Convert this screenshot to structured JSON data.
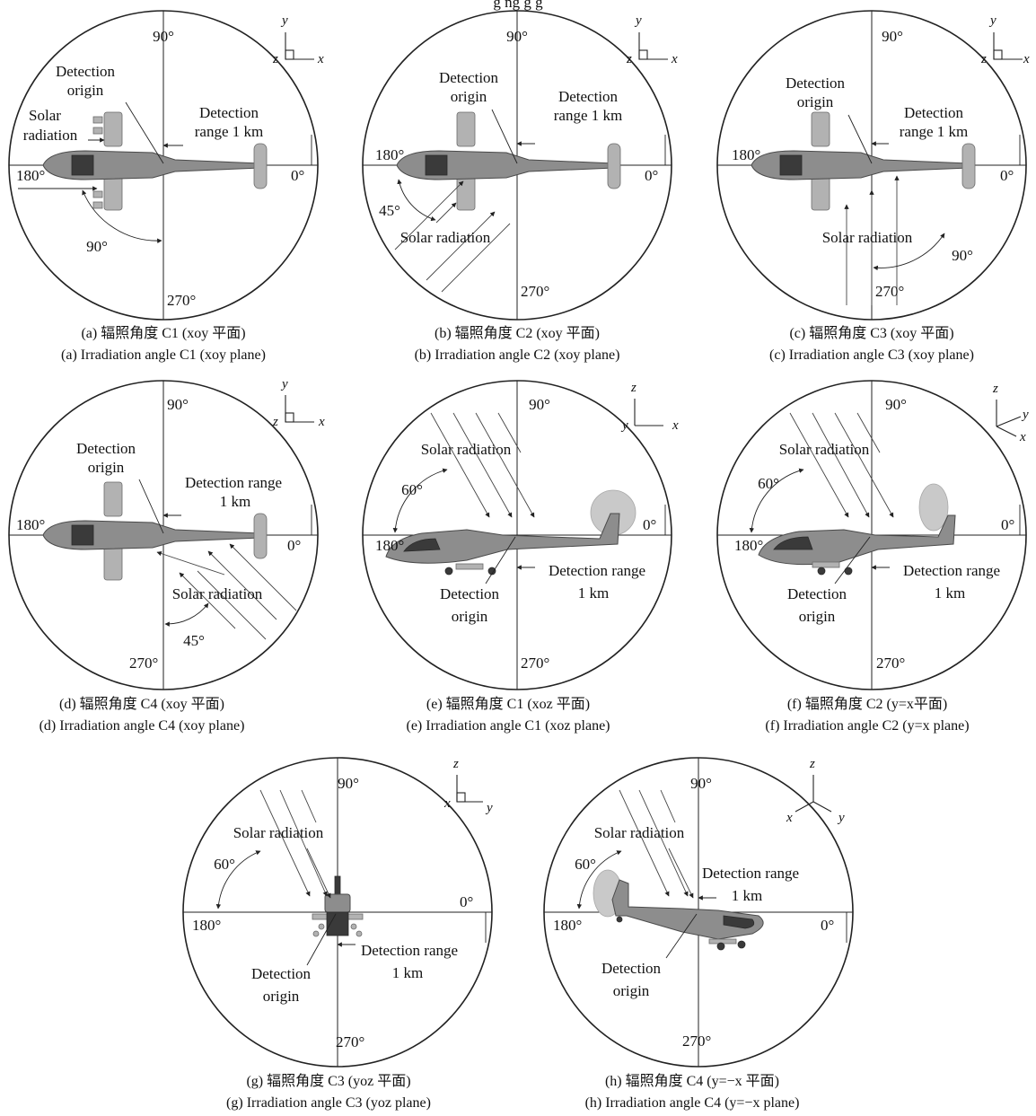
{
  "figure": {
    "header_text": "g  ng  g  g",
    "angle_labels": {
      "a0": "0°",
      "a90": "90°",
      "a180": "180°",
      "a270": "270°"
    },
    "labels": {
      "solar_radiation": "Solar radiation",
      "solar": "Solar",
      "radiation": "radiation",
      "detection": "Detection",
      "origin": "origin",
      "detection_range": "Detection range",
      "range_1km": "range 1 km",
      "one_km": "1 km",
      "angle_45": "45°",
      "angle_60": "60°",
      "angle_90": "90°"
    },
    "axes": {
      "x": "x",
      "y": "y",
      "z": "z"
    },
    "panels": [
      {
        "id": "a",
        "caption_cn": "(a) 辐照角度 C1 (xoy 平面)",
        "caption_en": "(a) Irradiation angle C1 (xoy plane)"
      },
      {
        "id": "b",
        "caption_cn": "(b) 辐照角度 C2 (xoy 平面)",
        "caption_en": "(b) Irradiation angle C2 (xoy plane)"
      },
      {
        "id": "c",
        "caption_cn": "(c) 辐照角度 C3 (xoy 平面)",
        "caption_en": "(c) Irradiation angle C3 (xoy plane)"
      },
      {
        "id": "d",
        "caption_cn": "(d) 辐照角度 C4 (xoy 平面)",
        "caption_en": "(d) Irradiation angle C4 (xoy plane)"
      },
      {
        "id": "e",
        "caption_cn": "(e) 辐照角度 C1 (xoz 平面)",
        "caption_en": "(e) Irradiation angle C1 (xoz plane)"
      },
      {
        "id": "f",
        "caption_cn": "(f) 辐照角度 C2 (y=x平面)",
        "caption_en": "(f) Irradiation angle C2 (y=x plane)"
      },
      {
        "id": "g",
        "caption_cn": "(g) 辐照角度 C3 (yoz 平面)",
        "caption_en": "(g) Irradiation angle C3 (yoz plane)"
      },
      {
        "id": "h",
        "caption_cn": "(h) 辐照角度 C4 (y=−x 平面)",
        "caption_en": "(h) Irradiation angle C4 (y=−x plane)"
      }
    ]
  }
}
